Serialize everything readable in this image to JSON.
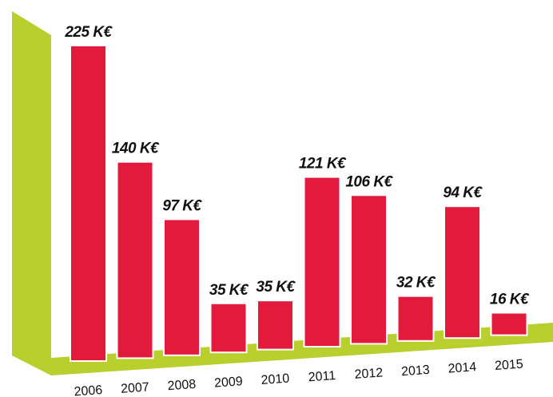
{
  "chart_data": {
    "type": "bar",
    "categories": [
      "2006",
      "2007",
      "2008",
      "2009",
      "2010",
      "2011",
      "2012",
      "2013",
      "2014",
      "2015"
    ],
    "values": [
      225,
      140,
      97,
      35,
      35,
      121,
      106,
      32,
      94,
      16
    ],
    "value_labels": [
      "225 K€",
      "140 K€",
      "97 K€",
      "35 K€",
      "35 K€",
      "121 K€",
      "106 K€",
      "32 K€",
      "94 K€",
      "16 K€"
    ],
    "color": "#e21b3c",
    "floor_color": "#b8cf2e"
  }
}
